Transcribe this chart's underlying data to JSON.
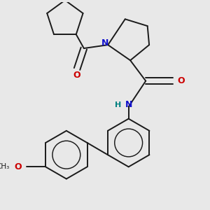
{
  "bg_color": "#e8e8e8",
  "bond_color": "#1a1a1a",
  "N_color": "#1010cc",
  "O_color": "#cc0000",
  "H_color": "#008080",
  "lw": 1.4,
  "figsize": [
    3.0,
    3.0
  ],
  "dpi": 100,
  "xlim": [
    -2.5,
    2.5
  ],
  "ylim": [
    -3.2,
    2.8
  ]
}
